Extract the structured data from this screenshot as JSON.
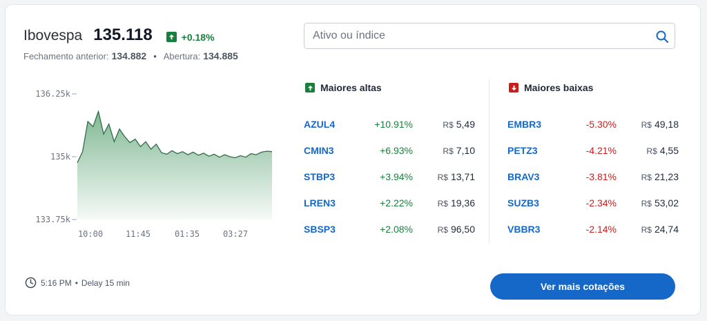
{
  "index": {
    "name": "Ibovespa",
    "value": "135.118",
    "change": "+0.18%",
    "prev_close_label": "Fechamento anterior:",
    "prev_close": "134.882",
    "open_label": "Abertura:",
    "open": "134.885"
  },
  "search": {
    "placeholder": "Ativo ou índice"
  },
  "chart_data": {
    "type": "area",
    "x_ticks": [
      "10:00",
      "11:45",
      "01:35",
      "03:27"
    ],
    "y_ticks": [
      "136.25k",
      "135k",
      "133.75k"
    ],
    "ylim": [
      133750,
      136250
    ],
    "color": "#1a7f3c",
    "values": [
      134880,
      135100,
      135700,
      135600,
      135900,
      135450,
      135650,
      135300,
      135550,
      135400,
      135280,
      135350,
      135200,
      135300,
      135150,
      135250,
      135080,
      135050,
      135120,
      135060,
      135100,
      135040,
      135090,
      135030,
      135070,
      135010,
      135050,
      134990,
      135040,
      135000,
      134980,
      135020,
      134990,
      135060,
      135040,
      135090,
      135110,
      135100
    ]
  },
  "gainers": {
    "title": "Maiores altas",
    "rows": [
      {
        "symbol": "AZUL4",
        "change": "+10.91%",
        "currency": "R$",
        "price": "5,49"
      },
      {
        "symbol": "CMIN3",
        "change": "+6.93%",
        "currency": "R$",
        "price": "7,10"
      },
      {
        "symbol": "STBP3",
        "change": "+3.94%",
        "currency": "R$",
        "price": "13,71"
      },
      {
        "symbol": "LREN3",
        "change": "+2.22%",
        "currency": "R$",
        "price": "19,36"
      },
      {
        "symbol": "SBSP3",
        "change": "+2.08%",
        "currency": "R$",
        "price": "96,50"
      }
    ]
  },
  "losers": {
    "title": "Maiores baixas",
    "rows": [
      {
        "symbol": "EMBR3",
        "change": "-5.30%",
        "currency": "R$",
        "price": "49,18"
      },
      {
        "symbol": "PETZ3",
        "change": "-4.21%",
        "currency": "R$",
        "price": "4,55"
      },
      {
        "symbol": "BRAV3",
        "change": "-3.81%",
        "currency": "R$",
        "price": "21,23"
      },
      {
        "symbol": "SUZB3",
        "change": "-2.34%",
        "currency": "R$",
        "price": "53,02"
      },
      {
        "symbol": "VBBR3",
        "change": "-2.14%",
        "currency": "R$",
        "price": "24,74"
      }
    ]
  },
  "footer": {
    "time": "5:16 PM",
    "delay": "Delay 15 min",
    "button": "Ver mais cotações"
  },
  "icons": {
    "clock": "clock-icon",
    "search": "search-icon",
    "up": "arrow-up-icon",
    "down": "arrow-down-icon"
  }
}
